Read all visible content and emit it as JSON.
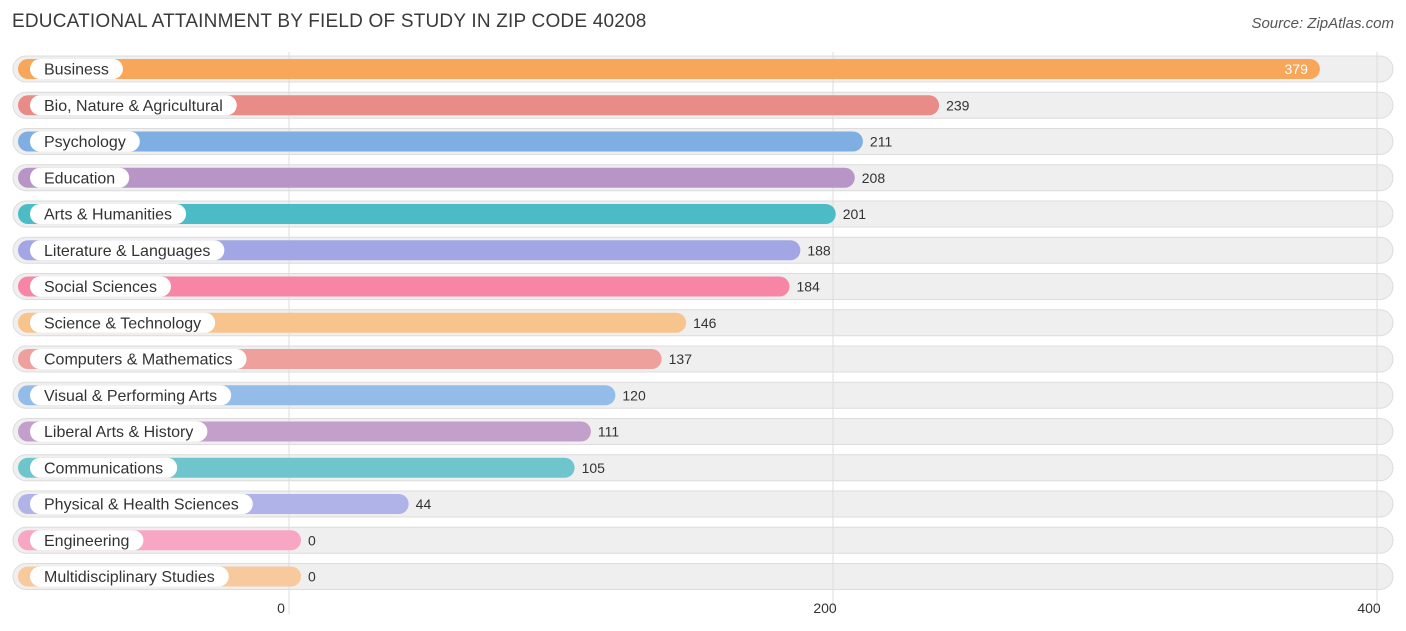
{
  "header": {
    "title": "EDUCATIONAL ATTAINMENT BY FIELD OF STUDY IN ZIP CODE 40208",
    "source": "Source: ZipAtlas.com"
  },
  "chart_data": {
    "type": "bar",
    "orientation": "horizontal",
    "title": "EDUCATIONAL ATTAINMENT BY FIELD OF STUDY IN ZIP CODE 40208",
    "categories": [
      "Business",
      "Bio, Nature & Agricultural",
      "Psychology",
      "Education",
      "Arts & Humanities",
      "Literature & Languages",
      "Social Sciences",
      "Science & Technology",
      "Computers & Mathematics",
      "Visual & Performing Arts",
      "Liberal Arts & History",
      "Communications",
      "Physical & Health Sciences",
      "Engineering",
      "Multidisciplinary Studies"
    ],
    "values": [
      379,
      239,
      211,
      208,
      201,
      188,
      184,
      146,
      137,
      120,
      111,
      105,
      44,
      0,
      0
    ],
    "value_labels": [
      "379",
      "239",
      "211",
      "208",
      "201",
      "188",
      "184",
      "146",
      "137",
      "120",
      "111",
      "105",
      "44",
      "0",
      "0"
    ],
    "colors": [
      "#f7a65a",
      "#e98b87",
      "#7eaee2",
      "#b796c7",
      "#4bbcc6",
      "#a3a6e4",
      "#f685a6",
      "#f8c48d",
      "#eea09c",
      "#93bce8",
      "#c39fcc",
      "#6ec6cc",
      "#afb3e8",
      "#f7a6c4",
      "#f8c99d"
    ],
    "xlim": [
      0,
      400
    ],
    "xticks": [
      0,
      200,
      400
    ],
    "xtick_labels": [
      "0",
      "200",
      "400"
    ],
    "grid": true,
    "xlabel": "",
    "ylabel": ""
  }
}
